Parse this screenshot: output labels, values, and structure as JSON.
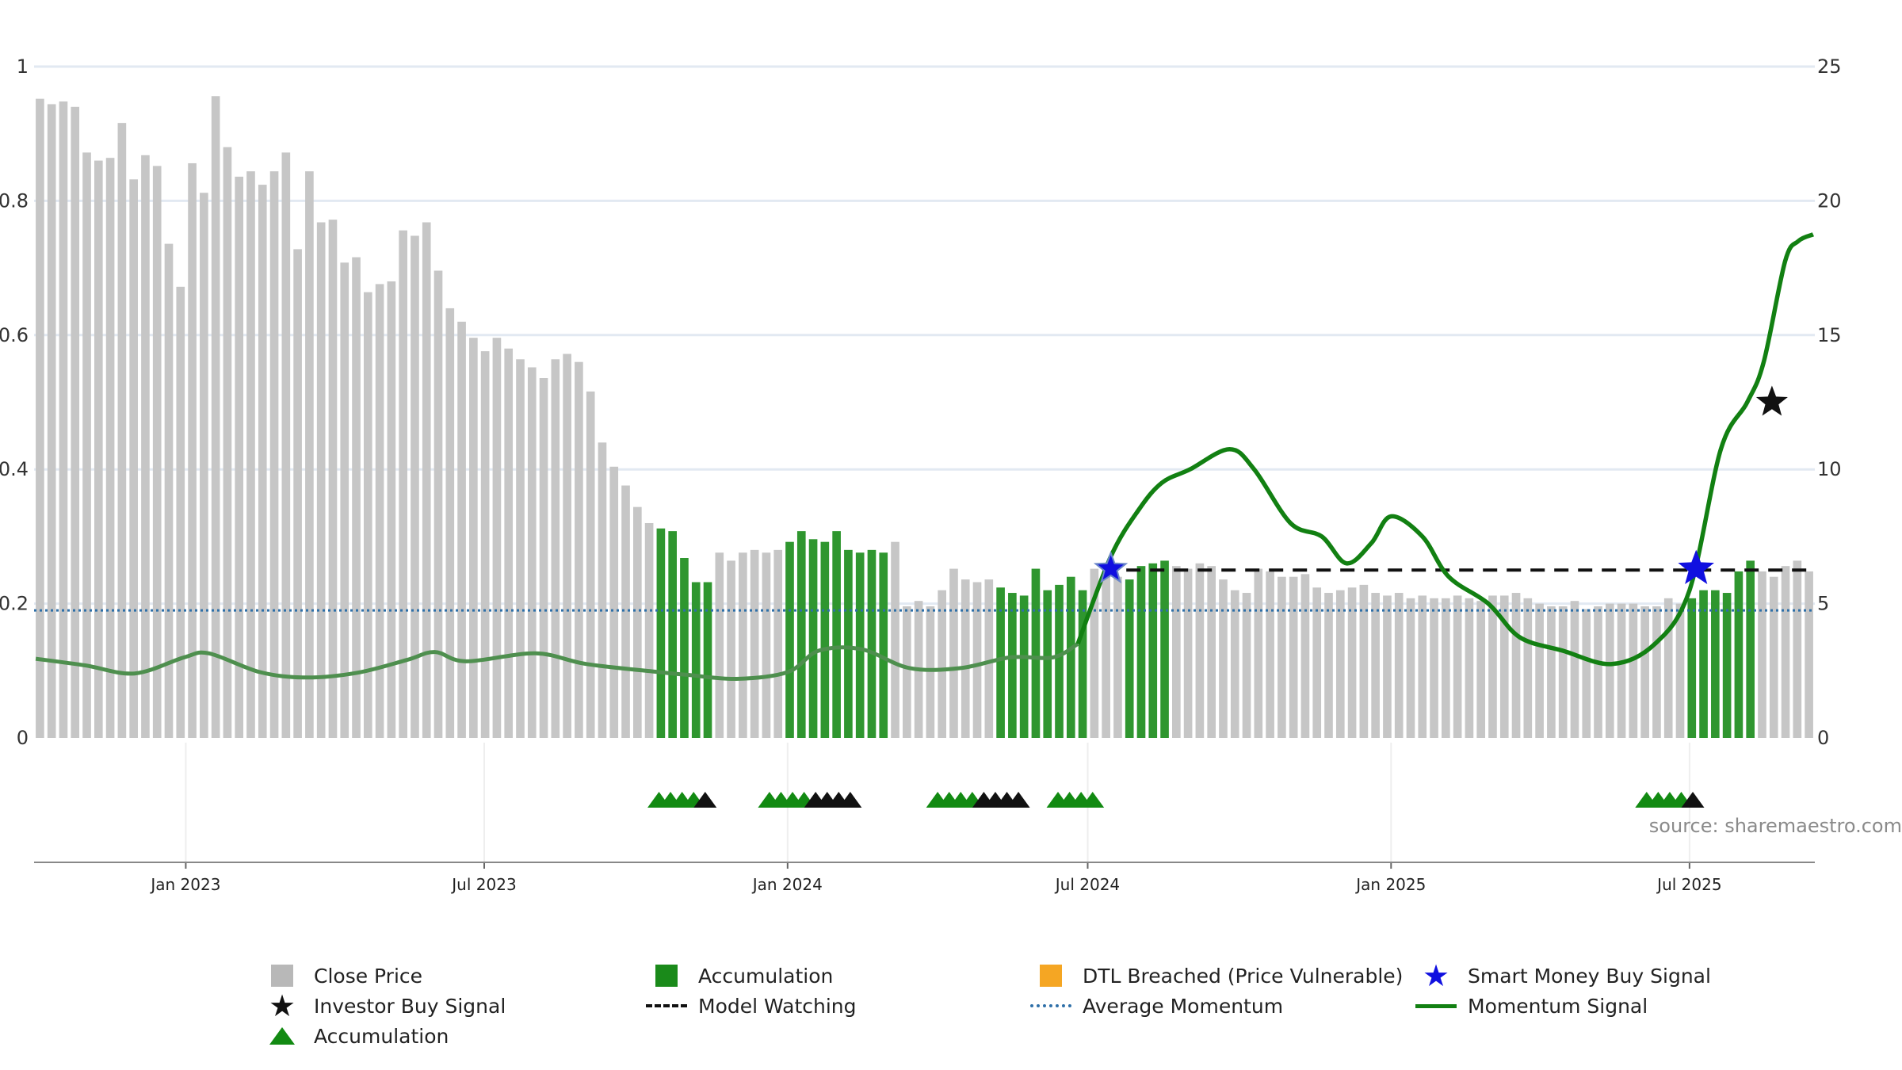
{
  "chart_data": {
    "type": "bar",
    "title": "",
    "source_text": "source: sharemaestro.com",
    "left_axis": {
      "range": [
        0,
        1
      ],
      "ticks": [
        "0",
        "0.2",
        "0.4",
        "0.6",
        "0.8",
        "1"
      ],
      "grid": true
    },
    "right_axis": {
      "range": [
        0,
        25
      ],
      "ticks": [
        "0",
        "5",
        "10",
        "15",
        "20",
        "25"
      ]
    },
    "x_axis": {
      "start": "2022-10-01",
      "end": "2025-09-15",
      "ticks": [
        {
          "date": "2023-01-01",
          "label": "Jan 2023"
        },
        {
          "date": "2023-07-01",
          "label": "Jul 2023"
        },
        {
          "date": "2024-01-01",
          "label": "Jan 2024"
        },
        {
          "date": "2024-07-01",
          "label": "Jul 2024"
        },
        {
          "date": "2025-01-01",
          "label": "Jan 2025"
        },
        {
          "date": "2025-07-01",
          "label": "Jul 2025"
        }
      ]
    },
    "bars": {
      "name": "Close Price",
      "accumulation_name": "Accumulation",
      "axis": "right",
      "gray_color": "#c6c6c6",
      "green_color": "#2f962f",
      "values": [
        23.8,
        23.6,
        23.7,
        23.5,
        21.8,
        21.5,
        21.6,
        22.9,
        20.8,
        21.7,
        21.3,
        18.4,
        16.8,
        21.4,
        20.3,
        23.9,
        22.0,
        20.9,
        21.1,
        20.6,
        21.1,
        21.8,
        18.2,
        21.1,
        19.2,
        19.3,
        17.7,
        17.9,
        16.6,
        16.9,
        17.0,
        18.9,
        18.7,
        19.2,
        17.4,
        16.0,
        15.5,
        14.9,
        14.4,
        14.9,
        14.5,
        14.1,
        13.8,
        13.4,
        14.1,
        14.3,
        14.0,
        12.9,
        11.0,
        10.1,
        9.4,
        8.6,
        8.0,
        7.8,
        7.7,
        6.7,
        5.8,
        5.8,
        6.9,
        6.6,
        6.9,
        7.0,
        6.9,
        7.0,
        7.3,
        7.7,
        7.4,
        7.3,
        7.7,
        7.0,
        6.9,
        7.0,
        6.9,
        7.3,
        4.9,
        5.1,
        4.9,
        5.5,
        6.3,
        5.9,
        5.8,
        5.9,
        5.6,
        5.4,
        5.3,
        6.3,
        5.5,
        5.7,
        6.0,
        5.5,
        6.3,
        6.1,
        6.0,
        5.9,
        6.4,
        6.5,
        6.6,
        6.4,
        6.3,
        6.5,
        6.4,
        5.9,
        5.5,
        5.4,
        6.3,
        6.2,
        6.0,
        6.0,
        6.1,
        5.6,
        5.4,
        5.5,
        5.6,
        5.7,
        5.4,
        5.3,
        5.4,
        5.2,
        5.3,
        5.2,
        5.2,
        5.3,
        5.2,
        5.1,
        5.3,
        5.3,
        5.4,
        5.2,
        5.0,
        4.9,
        4.9,
        5.1,
        4.8,
        4.9,
        5.0,
        5.0,
        5.0,
        4.9,
        4.9,
        5.2,
        5.0,
        5.2,
        5.5,
        5.5,
        5.4,
        6.2,
        6.6,
        6.2,
        6.0,
        6.4,
        6.6,
        6.2
      ],
      "accumulation_ranges": [
        [
          53,
          57
        ],
        [
          64,
          72
        ],
        [
          82,
          89
        ],
        [
          93,
          96
        ],
        [
          141,
          146
        ]
      ]
    },
    "model_watching": {
      "name": "Model Watching",
      "axis": "right",
      "value": 6.25,
      "from": "2024-07-10",
      "to": "2025-09-10"
    },
    "average_momentum": {
      "name": "Average Momentum",
      "axis": "left",
      "value": 0.19
    },
    "momentum": {
      "name": "Momentum Signal",
      "axis": "left",
      "series": [
        [
          "2022-10-02",
          0.118
        ],
        [
          "2022-11-01",
          0.108
        ],
        [
          "2022-12-01",
          0.096
        ],
        [
          "2022-12-31",
          0.12
        ],
        [
          "2023-01-15",
          0.126
        ],
        [
          "2023-02-15",
          0.098
        ],
        [
          "2023-03-15",
          0.09
        ],
        [
          "2023-04-15",
          0.097
        ],
        [
          "2023-05-15",
          0.116
        ],
        [
          "2023-06-01",
          0.128
        ],
        [
          "2023-06-20",
          0.114
        ],
        [
          "2023-08-01",
          0.126
        ],
        [
          "2023-09-01",
          0.11
        ],
        [
          "2023-10-15",
          0.098
        ],
        [
          "2023-11-01",
          0.094
        ],
        [
          "2023-12-01",
          0.088
        ],
        [
          "2024-01-01",
          0.098
        ],
        [
          "2024-01-20",
          0.13
        ],
        [
          "2024-02-15",
          0.132
        ],
        [
          "2024-03-15",
          0.104
        ],
        [
          "2024-04-15",
          0.104
        ],
        [
          "2024-05-15",
          0.12
        ],
        [
          "2024-06-10",
          0.12
        ],
        [
          "2024-06-25",
          0.14
        ],
        [
          "2024-07-15",
          0.27
        ],
        [
          "2024-08-01",
          0.34
        ],
        [
          "2024-08-15",
          0.38
        ],
        [
          "2024-09-01",
          0.4
        ],
        [
          "2024-09-25",
          0.43
        ],
        [
          "2024-10-10",
          0.4
        ],
        [
          "2024-11-01",
          0.32
        ],
        [
          "2024-11-20",
          0.3
        ],
        [
          "2024-12-05",
          0.26
        ],
        [
          "2024-12-20",
          0.29
        ],
        [
          "2025-01-01",
          0.33
        ],
        [
          "2025-01-20",
          0.3
        ],
        [
          "2025-02-05",
          0.24
        ],
        [
          "2025-03-01",
          0.2
        ],
        [
          "2025-03-20",
          0.15
        ],
        [
          "2025-04-15",
          0.13
        ],
        [
          "2025-05-15",
          0.11
        ],
        [
          "2025-06-10",
          0.14
        ],
        [
          "2025-07-01",
          0.22
        ],
        [
          "2025-07-20",
          0.43
        ],
        [
          "2025-08-05",
          0.5
        ],
        [
          "2025-08-15",
          0.56
        ],
        [
          "2025-08-28",
          0.71
        ],
        [
          "2025-09-05",
          0.74
        ],
        [
          "2025-09-14",
          0.75
        ]
      ]
    },
    "smart_money_signals": [
      {
        "date": "2024-07-15",
        "value": 6.3,
        "size": "small"
      },
      {
        "date": "2025-07-05",
        "value": 6.3,
        "size": "large"
      }
    ],
    "investor_signals": [
      {
        "date": "2025-08-20",
        "value": 0.5
      }
    ],
    "markers": {
      "green": [
        "2023-10-15",
        "2023-10-22",
        "2023-10-29",
        "2023-11-05",
        "2023-12-21",
        "2023-12-28",
        "2024-01-04",
        "2024-01-11",
        "2024-04-01",
        "2024-04-08",
        "2024-04-15",
        "2024-04-22",
        "2024-06-13",
        "2024-06-20",
        "2024-06-27",
        "2024-07-04",
        "2025-06-05",
        "2025-06-12",
        "2025-06-19",
        "2025-06-26"
      ],
      "black": [
        "2023-11-12",
        "2024-01-18",
        "2024-01-25",
        "2024-02-01",
        "2024-02-08",
        "2024-04-29",
        "2024-05-06",
        "2024-05-13",
        "2024-05-20",
        "2025-07-03"
      ]
    },
    "colors": {
      "momentum": "#128012",
      "momentum_muted": "#4e8f4e",
      "average": "#2e6fa8",
      "watching": "#111111",
      "smart_money": "#1010e0",
      "investor": "#111111",
      "grid": "#e2e9f2",
      "vgrid": "#eeeeee"
    }
  },
  "legend": [
    {
      "label": "Close Price",
      "symbol": "square",
      "color": "#b8b8b8"
    },
    {
      "label": "Accumulation",
      "symbol": "square",
      "color": "#1a8a1a"
    },
    {
      "label": "DTL Breached (Price Vulnerable)",
      "symbol": "square",
      "color": "#f5a623"
    },
    {
      "label": "Smart Money Buy Signal",
      "symbol": "star",
      "color": "#1010e0"
    },
    {
      "label": "Investor Buy Signal",
      "symbol": "star",
      "color": "#111111"
    },
    {
      "label": "Model Watching",
      "symbol": "dash",
      "color": "#111111"
    },
    {
      "label": "Average Momentum",
      "symbol": "dot",
      "color": "#2e6fa8"
    },
    {
      "label": "Momentum Signal",
      "symbol": "line",
      "color": "#128012"
    },
    {
      "label": "Accumulation",
      "symbol": "triangle",
      "color": "#128a12"
    }
  ]
}
